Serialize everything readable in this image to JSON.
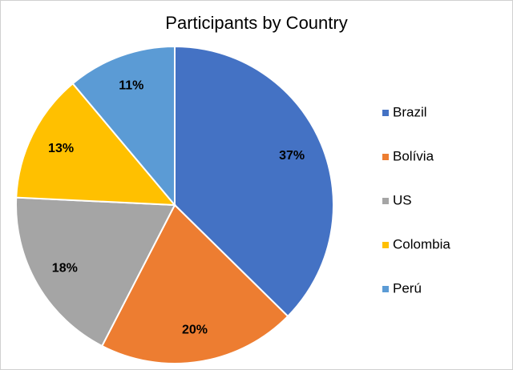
{
  "chart_data": {
    "type": "pie",
    "title": "Participants by Country",
    "categories": [
      "Brazil",
      "Bolívia",
      "US",
      "Colombia",
      "Perú"
    ],
    "values": [
      37,
      20,
      18,
      13,
      11
    ],
    "value_labels": [
      "37%",
      "20%",
      "18%",
      "13%",
      "11%"
    ],
    "colors": [
      "#4472c4",
      "#ed7d31",
      "#a5a5a5",
      "#ffc000",
      "#5b9bd5"
    ],
    "legend": "right"
  }
}
